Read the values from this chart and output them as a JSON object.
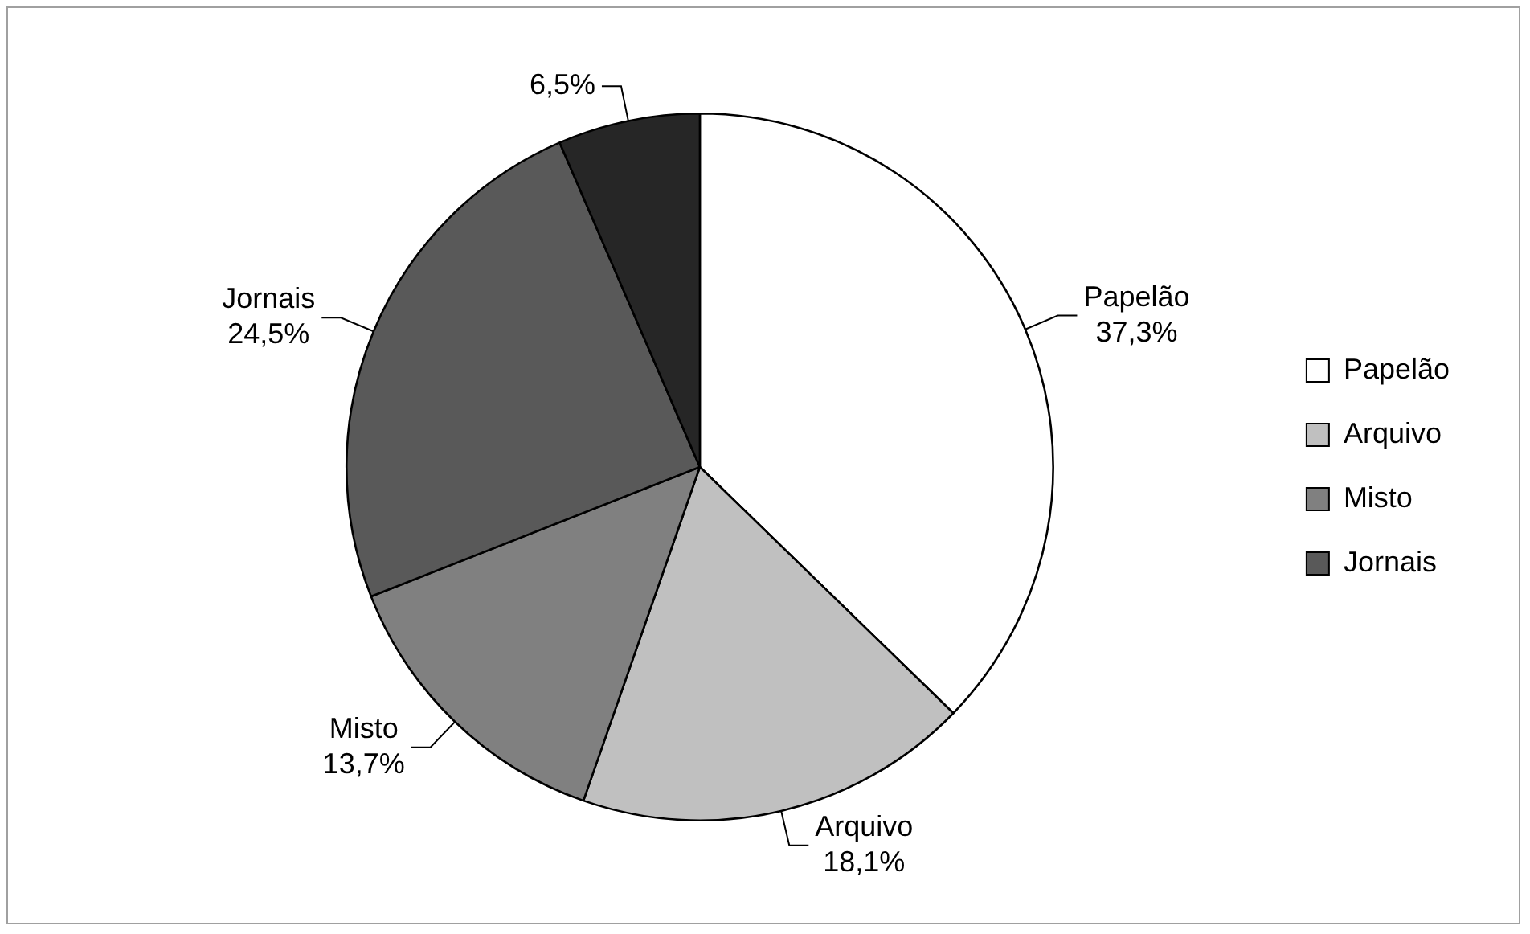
{
  "chart_data": {
    "type": "pie",
    "categories": [
      "Papelão",
      "Arquivo",
      "Misto",
      "Jornais",
      null
    ],
    "values": [
      37.3,
      18.1,
      13.7,
      24.5,
      6.5
    ],
    "value_labels": [
      "37,3%",
      "18,1%",
      "13,7%",
      "24,5%",
      "6,5%"
    ],
    "colors": [
      "#ffffff",
      "#c0c0c0",
      "#808080",
      "#595959",
      "#262626"
    ],
    "legend": "right"
  }
}
